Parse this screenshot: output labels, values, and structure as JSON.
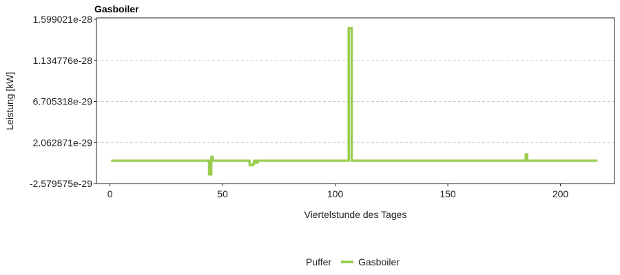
{
  "chart_data": {
    "type": "line",
    "title": "Gasboiler",
    "xlabel": "Viertelstunde des Tages",
    "ylabel": "Leistung [kW]",
    "xlim": [
      -6,
      224
    ],
    "ylim": [
      -2.579575e-29,
      1.599021e-28
    ],
    "x_ticks": [
      0,
      50,
      100,
      150,
      200
    ],
    "x_tick_labels": [
      "0",
      "50",
      "100",
      "150",
      "200"
    ],
    "y_ticks": [
      -2.579575e-29,
      2.062871e-29,
      6.705318e-29,
      1.134776e-28,
      1.599021e-28
    ],
    "y_tick_labels": [
      "-2.579575e-29",
      "2.062871e-29",
      "6.705318e-29",
      "1.134776e-28",
      "1.599021e-28"
    ],
    "grid": true,
    "legend": {
      "title": "Puffer",
      "placement": "bottom"
    },
    "series": [
      {
        "name": "Gasboiler",
        "color": "#9acd50",
        "x": [
          1,
          44,
          44,
          44.6,
          44.6,
          44.9,
          44.9,
          45,
          45,
          45.2,
          45.2,
          45.6,
          45.6,
          62,
          62,
          63.5,
          63.5,
          64,
          64,
          65,
          65,
          65.6,
          65.6,
          66,
          66,
          106,
          106,
          106.2,
          106.2,
          107.3,
          107.3,
          107.5,
          107.5,
          184.6,
          184.6,
          185.2,
          185.2,
          216
        ],
        "y": [
          0,
          0,
          -1.55e-29,
          -1.55e-29,
          0,
          0,
          -1.55e-29,
          -1.55e-29,
          4e-30,
          4e-30,
          4.5e-30,
          4.5e-30,
          0,
          0,
          -5e-30,
          -5e-30,
          -3.5e-30,
          -3.5e-30,
          0,
          0,
          -2e-30,
          -2e-30,
          0,
          0,
          0,
          0,
          1.5e-28,
          1.5e-28,
          1.5e-28,
          1.5e-28,
          0,
          0,
          0,
          0,
          7e-30,
          7e-30,
          0,
          0
        ]
      }
    ]
  }
}
